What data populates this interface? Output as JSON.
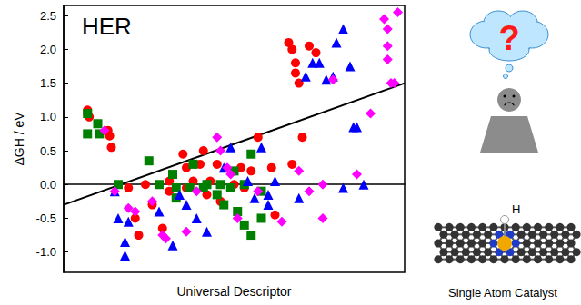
{
  "chart_data": {
    "type": "scatter",
    "xlabel": "Universal Descriptor",
    "ylabel": "ΔGH / eV",
    "annotations": [
      "HER"
    ],
    "illustration": {
      "thought": "?",
      "atom": "H",
      "caption": "Single Atom Catalyst"
    },
    "xlim": [
      0,
      100
    ],
    "ylim": [
      -1.3,
      2.65
    ],
    "yticks": [
      {
        "value": -1.0,
        "label": "-1.0"
      },
      {
        "value": -0.5,
        "label": "-0.5"
      },
      {
        "value": 0.0,
        "label": "0.0"
      },
      {
        "value": 0.5,
        "label": "0.5"
      },
      {
        "value": 1.0,
        "label": "1.0"
      },
      {
        "value": 1.5,
        "label": "1.5"
      },
      {
        "value": 2.0,
        "label": "2.0"
      },
      {
        "value": 2.5,
        "label": "2.5"
      }
    ],
    "tick_labels": "y",
    "grid": false,
    "series": [
      {
        "type": "scatter",
        "color": "#ff0000",
        "marker": "circle",
        "values": [
          [
            7,
            1.1
          ],
          [
            7,
            1.05
          ],
          [
            7.5,
            1.0
          ],
          [
            13,
            0.8
          ],
          [
            13.5,
            0.72
          ],
          [
            14,
            0.55
          ],
          [
            19,
            -0.05
          ],
          [
            21,
            -0.5
          ],
          [
            22,
            -0.75
          ],
          [
            24,
            0.0
          ],
          [
            26,
            -0.3
          ],
          [
            29,
            -0.65
          ],
          [
            31,
            0.05
          ],
          [
            31,
            -0.1
          ],
          [
            35,
            0.45
          ],
          [
            36,
            0.25
          ],
          [
            36,
            -0.05
          ],
          [
            38,
            0.05
          ],
          [
            40,
            0.3
          ],
          [
            41,
            0.5
          ],
          [
            42,
            -0.15
          ],
          [
            43,
            0.05
          ],
          [
            45,
            0.3
          ],
          [
            46,
            -0.25
          ],
          [
            50,
            0.0
          ],
          [
            52,
            0.25
          ],
          [
            53,
            -0.05
          ],
          [
            55,
            0.2
          ],
          [
            57,
            0.7
          ],
          [
            61,
            0.25
          ],
          [
            62,
            -0.45
          ],
          [
            67,
            0.3
          ],
          [
            70,
            0.7
          ],
          [
            66,
            2.1
          ],
          [
            67,
            2.0
          ],
          [
            68,
            1.8
          ],
          [
            68,
            1.65
          ],
          [
            69,
            1.5
          ],
          [
            72,
            2.05
          ],
          [
            74,
            1.95
          ]
        ]
      },
      {
        "type": "scatter",
        "color": "#008000",
        "marker": "square",
        "values": [
          [
            7,
            1.05
          ],
          [
            7,
            0.75
          ],
          [
            10,
            0.9
          ],
          [
            10.5,
            0.75
          ],
          [
            16,
            0.0
          ],
          [
            25,
            0.35
          ],
          [
            28,
            0.0
          ],
          [
            32,
            0.15
          ],
          [
            33,
            -0.05
          ],
          [
            33,
            -0.2
          ],
          [
            37,
            -0.05
          ],
          [
            38,
            0.3
          ],
          [
            41,
            -0.05
          ],
          [
            42,
            0.0
          ],
          [
            45,
            -0.15
          ],
          [
            46,
            0.0
          ],
          [
            47,
            -0.3
          ],
          [
            49,
            -0.05
          ],
          [
            50,
            0.2
          ],
          [
            51,
            -0.4
          ],
          [
            53,
            0.0
          ],
          [
            55,
            -0.75
          ],
          [
            55,
            0.45
          ],
          [
            58,
            -0.1
          ],
          [
            58,
            -0.5
          ],
          [
            53,
            -0.6
          ]
        ]
      },
      {
        "type": "scatter",
        "color": "#0000ff",
        "marker": "triangle",
        "values": [
          [
            15,
            -0.1
          ],
          [
            16,
            -0.5
          ],
          [
            18,
            -0.85
          ],
          [
            18,
            -1.05
          ],
          [
            19,
            -0.55
          ],
          [
            28,
            -0.4
          ],
          [
            32,
            -0.9
          ],
          [
            34,
            -0.15
          ],
          [
            36,
            -0.3
          ],
          [
            39,
            -0.5
          ],
          [
            42,
            -0.7
          ],
          [
            47,
            0.25
          ],
          [
            49,
            0.55
          ],
          [
            54,
            0.05
          ],
          [
            56,
            -0.2
          ],
          [
            58,
            0.55
          ],
          [
            60,
            -0.15
          ],
          [
            60,
            -0.3
          ],
          [
            62,
            0.05
          ],
          [
            69,
            -0.2
          ],
          [
            71,
            1.6
          ],
          [
            73,
            1.8
          ],
          [
            75,
            1.8
          ],
          [
            77,
            1.55
          ],
          [
            79,
            1.6
          ],
          [
            80,
            2.1
          ],
          [
            82,
            2.3
          ],
          [
            84,
            1.75
          ],
          [
            82,
            -0.05
          ],
          [
            85,
            0.85
          ],
          [
            86,
            0.85
          ],
          [
            88,
            0.0
          ]
        ]
      },
      {
        "type": "scatter",
        "color": "#ff00ff",
        "marker": "diamond",
        "values": [
          [
            12,
            0.8
          ],
          [
            15,
            -0.1
          ],
          [
            19,
            -0.35
          ],
          [
            21,
            -0.4
          ],
          [
            26,
            -0.25
          ],
          [
            29,
            -0.75
          ],
          [
            30,
            -0.8
          ],
          [
            36,
            -0.7
          ],
          [
            39,
            -0.1
          ],
          [
            45,
            0.7
          ],
          [
            46,
            0.5
          ],
          [
            48,
            0.25
          ],
          [
            49,
            0.15
          ],
          [
            51,
            -0.5
          ],
          [
            57,
            -0.1
          ],
          [
            64,
            -0.55
          ],
          [
            69,
            0.2
          ],
          [
            72,
            -0.1
          ],
          [
            76,
            0.0
          ],
          [
            76,
            -0.5
          ],
          [
            79,
            1.55
          ],
          [
            86,
            0.15
          ],
          [
            90,
            1.05
          ],
          [
            94,
            2.45
          ],
          [
            95,
            2.3
          ],
          [
            95,
            2.05
          ],
          [
            95,
            1.85
          ],
          [
            96,
            1.5
          ],
          [
            97,
            1.5
          ],
          [
            98,
            2.55
          ]
        ]
      },
      {
        "type": "line",
        "color": "#000000",
        "line_style": "solid",
        "values": [
          [
            0,
            -0.3
          ],
          [
            100,
            1.5
          ]
        ]
      }
    ]
  }
}
